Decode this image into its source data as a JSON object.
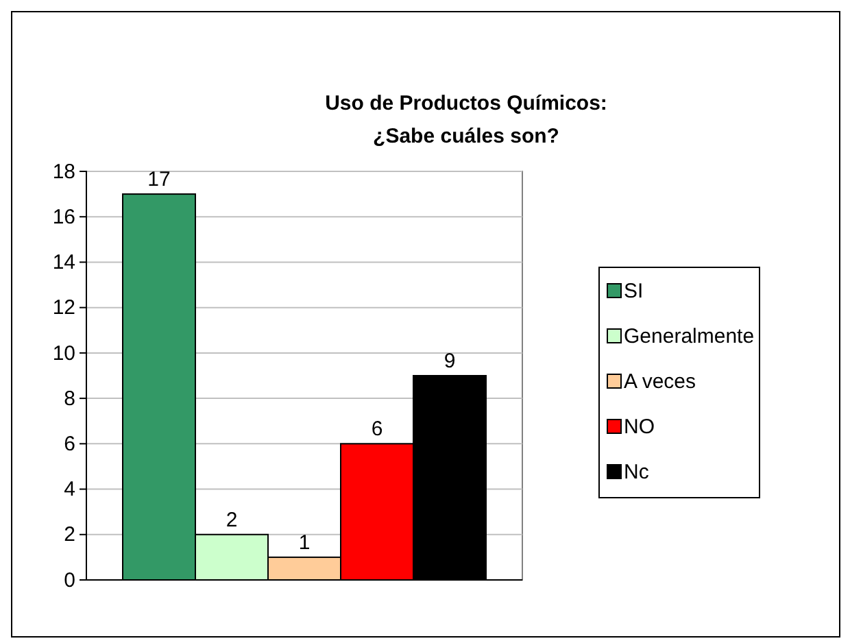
{
  "chart_data": {
    "type": "bar",
    "title": "Uso de Productos Químicos:\n¿Sabe cuáles son?",
    "categories": [
      null
    ],
    "series": [
      {
        "name": "SI",
        "color": "#339966",
        "values": [
          17
        ]
      },
      {
        "name": "Generalmente",
        "color": "#ccffcc",
        "values": [
          2
        ]
      },
      {
        "name": "A veces",
        "color": "#ffcc99",
        "values": [
          1
        ]
      },
      {
        "name": "NO",
        "color": "#ff0000",
        "values": [
          6
        ]
      },
      {
        "name": "Nc",
        "color": "#000000",
        "values": [
          9
        ]
      }
    ],
    "ylim": [
      0,
      18
    ],
    "yticks": [
      0,
      2,
      4,
      6,
      8,
      10,
      12,
      14,
      16,
      18
    ],
    "grid": "y",
    "legend": "right",
    "data_labels": true
  }
}
